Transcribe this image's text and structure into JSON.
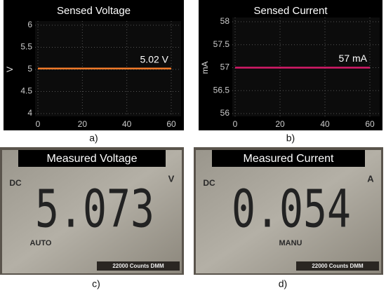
{
  "chart_data": [
    {
      "type": "line",
      "title": "Sensed Voltage",
      "ylabel": "V",
      "x": [
        0,
        60
      ],
      "series": [
        {
          "color": "#f07a2a",
          "values": [
            5.02,
            5.02
          ]
        }
      ],
      "annotation": "5.02 V",
      "xlim": [
        0,
        60
      ],
      "xticks": [
        0,
        20,
        40,
        60
      ],
      "ylim": [
        4,
        6
      ],
      "yticks": [
        4,
        4.5,
        5,
        5.5,
        6
      ],
      "grid": true,
      "caption": "a)"
    },
    {
      "type": "line",
      "title": "Sensed Current",
      "ylabel": "mA",
      "x": [
        0,
        60
      ],
      "series": [
        {
          "color": "#d81b6a",
          "values": [
            57,
            57
          ]
        }
      ],
      "annotation": "57 mA",
      "xlim": [
        0,
        60
      ],
      "xticks": [
        0,
        20,
        40,
        60
      ],
      "ylim": [
        56,
        58
      ],
      "yticks": [
        56,
        56.5,
        57,
        57.5,
        58
      ],
      "grid": true,
      "caption": "b)"
    }
  ],
  "photos": [
    {
      "title": "Measured Voltage",
      "reading": "5.073",
      "mode": "AUTO",
      "left": "DC",
      "unit": "V",
      "brand": "22000 Counts DMM",
      "caption": "c)"
    },
    {
      "title": "Measured Current",
      "reading": "0.054",
      "mode": "MANU",
      "left": "DC",
      "unit": "A",
      "brand": "22000 Counts DMM",
      "caption": "d)"
    }
  ]
}
